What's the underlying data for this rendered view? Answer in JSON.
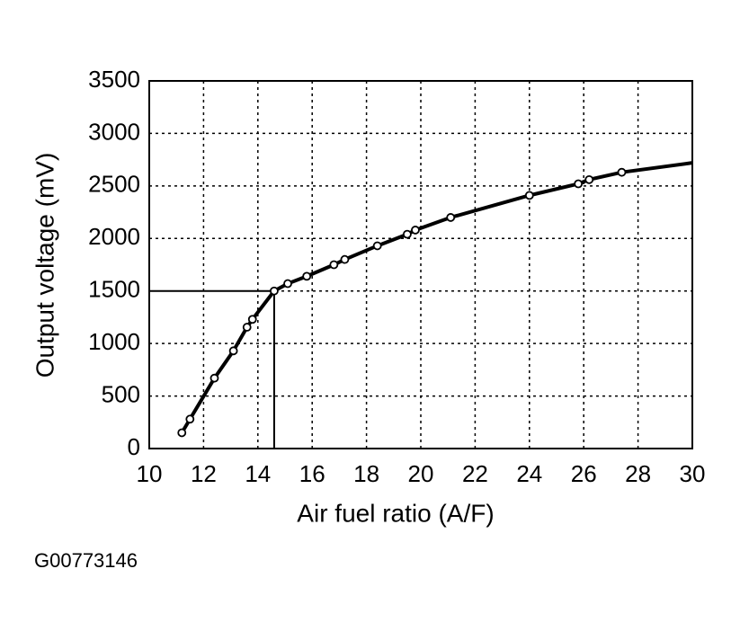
{
  "chart_data": {
    "type": "line",
    "x_label": "Air fuel ratio (A/F)",
    "y_label": "Output voltage (mV)",
    "footnote": "G00773146",
    "xlim": [
      10,
      30
    ],
    "xticks": [
      10,
      12,
      14,
      16,
      18,
      20,
      22,
      24,
      26,
      28,
      30
    ],
    "ylim": [
      0,
      3500
    ],
    "yticks": [
      0,
      500,
      1000,
      1500,
      2000,
      2500,
      3000,
      3500
    ],
    "grid": true,
    "series": [
      {
        "color": "#000000",
        "x": [
          11.2,
          11.5,
          12.4,
          13.1,
          13.6,
          13.8,
          14.6,
          15.1,
          15.8,
          16.8,
          17.2,
          18.4,
          19.5,
          19.8,
          21.1,
          24.0,
          25.8,
          26.2,
          27.4,
          30
        ],
        "values": [
          150,
          280,
          670,
          930,
          1155,
          1230,
          1500,
          1570,
          1640,
          1750,
          1800,
          1930,
          2040,
          2080,
          2200,
          2410,
          2520,
          2560,
          2630,
          2720
        ],
        "markers": [
          true,
          true,
          true,
          true,
          true,
          true,
          true,
          true,
          true,
          true,
          true,
          true,
          true,
          true,
          true,
          true,
          true,
          true,
          true,
          false
        ]
      }
    ],
    "reference": {
      "x": 14.6,
      "y": 1500
    }
  }
}
